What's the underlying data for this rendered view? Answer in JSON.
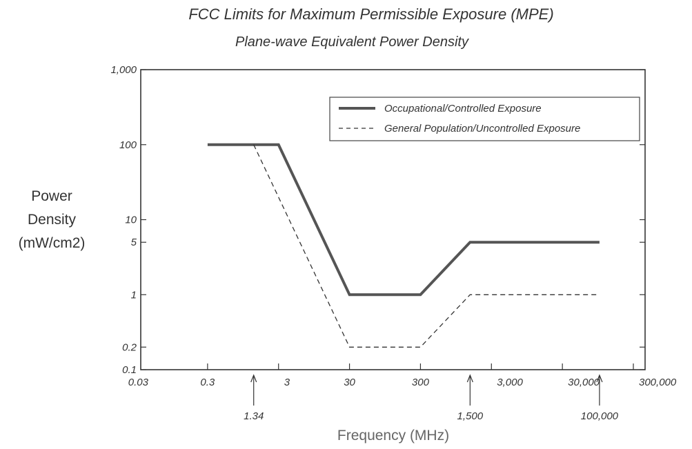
{
  "chart_data": {
    "type": "line",
    "title": "FCC Limits for Maximum Permissible Exposure (MPE)",
    "subtitle": "Plane-wave Equivalent  Power Density",
    "ylabel_lines": [
      "Power",
      "Density",
      "(mW/cm2)"
    ],
    "xlabel": "Frequency (MHz)",
    "x_scale": "log",
    "y_scale": "log",
    "xlim": [
      0.03,
      300000
    ],
    "ylim": [
      0.1,
      1000
    ],
    "y_ticks": [
      {
        "value": 1000,
        "label": "1,000"
      },
      {
        "value": 100,
        "label": "100"
      },
      {
        "value": 10,
        "label": "10"
      },
      {
        "value": 5,
        "label": "5"
      },
      {
        "value": 1,
        "label": "1"
      },
      {
        "value": 0.2,
        "label": "0.2"
      },
      {
        "value": 0.1,
        "label": "0.1"
      }
    ],
    "x_ticks": [
      {
        "value": 0.03,
        "label": "0.03"
      },
      {
        "value": 0.3,
        "label": "0.3"
      },
      {
        "value": 3,
        "label": "3"
      },
      {
        "value": 30,
        "label": "30"
      },
      {
        "value": 300,
        "label": "300"
      },
      {
        "value": 3000,
        "label": "3,000"
      },
      {
        "value": 30000,
        "label": "30,000"
      },
      {
        "value": 300000,
        "label": "300,000"
      }
    ],
    "x_annotations": [
      {
        "value": 1.34,
        "label": "1.34"
      },
      {
        "value": 1500,
        "label": "1,500"
      },
      {
        "value": 100000,
        "label": "100,000"
      }
    ],
    "series": [
      {
        "name": "Occupational/Controlled Exposure",
        "style": "solid",
        "color": "#555555",
        "x": [
          0.3,
          3,
          30,
          300,
          1500,
          100000
        ],
        "y": [
          100,
          100,
          1,
          1,
          5,
          5
        ]
      },
      {
        "name": "General Population/Uncontrolled Exposure",
        "style": "dashed",
        "color": "#333333",
        "x": [
          1.34,
          30,
          300,
          1500,
          100000
        ],
        "y": [
          100,
          0.2,
          0.2,
          1,
          1
        ]
      }
    ],
    "legend": "top-right",
    "grid": false
  }
}
